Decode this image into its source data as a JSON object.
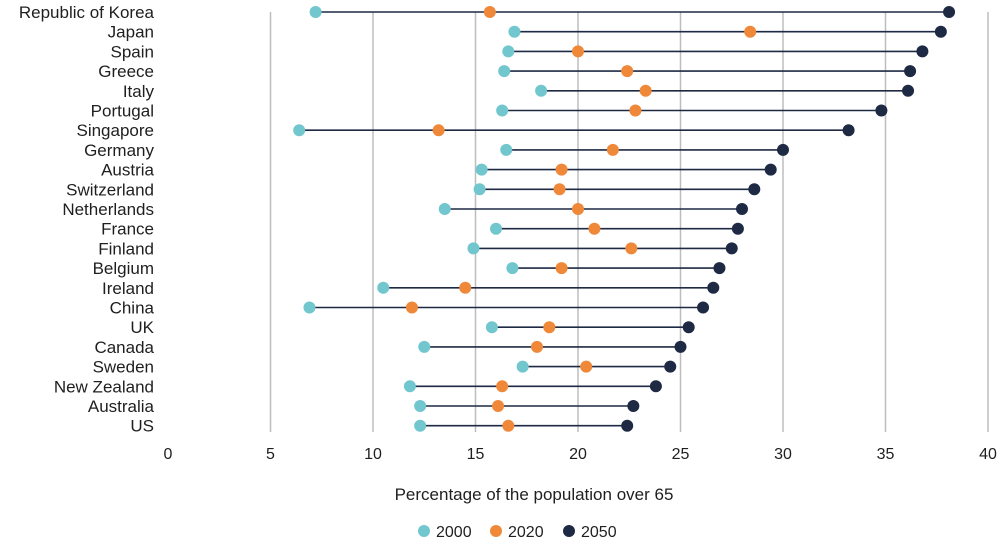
{
  "chart_data": {
    "type": "dot-range",
    "xlabel": "Percentage of the population over 65",
    "xlim": [
      0,
      40
    ],
    "xticks": [
      0,
      5,
      10,
      15,
      20,
      25,
      30,
      35,
      40
    ],
    "grid": "vertical",
    "legend_position": "bottom",
    "categories": [
      "Republic of Korea",
      "Japan",
      "Spain",
      "Greece",
      "Italy",
      "Portugal",
      "Singapore",
      "Germany",
      "Austria",
      "Switzerland",
      "Netherlands",
      "France",
      "Finland",
      "Belgium",
      "Ireland",
      "China",
      "UK",
      "Canada",
      "Sweden",
      "New Zealand",
      "Australia",
      "US"
    ],
    "series": [
      {
        "name": "2000",
        "color": "#72c7cf",
        "values": [
          7.2,
          16.9,
          16.6,
          16.4,
          18.2,
          16.3,
          6.4,
          16.5,
          15.3,
          15.2,
          13.5,
          16.0,
          14.9,
          16.8,
          10.5,
          6.9,
          15.8,
          12.5,
          17.3,
          11.8,
          12.3,
          12.3
        ]
      },
      {
        "name": "2020",
        "color": "#f0883a",
        "values": [
          15.7,
          28.4,
          20.0,
          22.4,
          23.3,
          22.8,
          13.2,
          21.7,
          19.2,
          19.1,
          20.0,
          20.8,
          22.6,
          19.2,
          14.5,
          11.9,
          18.6,
          18.0,
          20.4,
          16.3,
          16.1,
          16.6
        ]
      },
      {
        "name": "2050",
        "color": "#1e2a44",
        "values": [
          38.1,
          37.7,
          36.8,
          36.2,
          36.1,
          34.8,
          33.2,
          30.0,
          29.4,
          28.6,
          28.0,
          27.8,
          27.5,
          26.9,
          26.6,
          26.1,
          25.4,
          25.0,
          24.5,
          23.8,
          22.7,
          22.4
        ]
      }
    ]
  }
}
